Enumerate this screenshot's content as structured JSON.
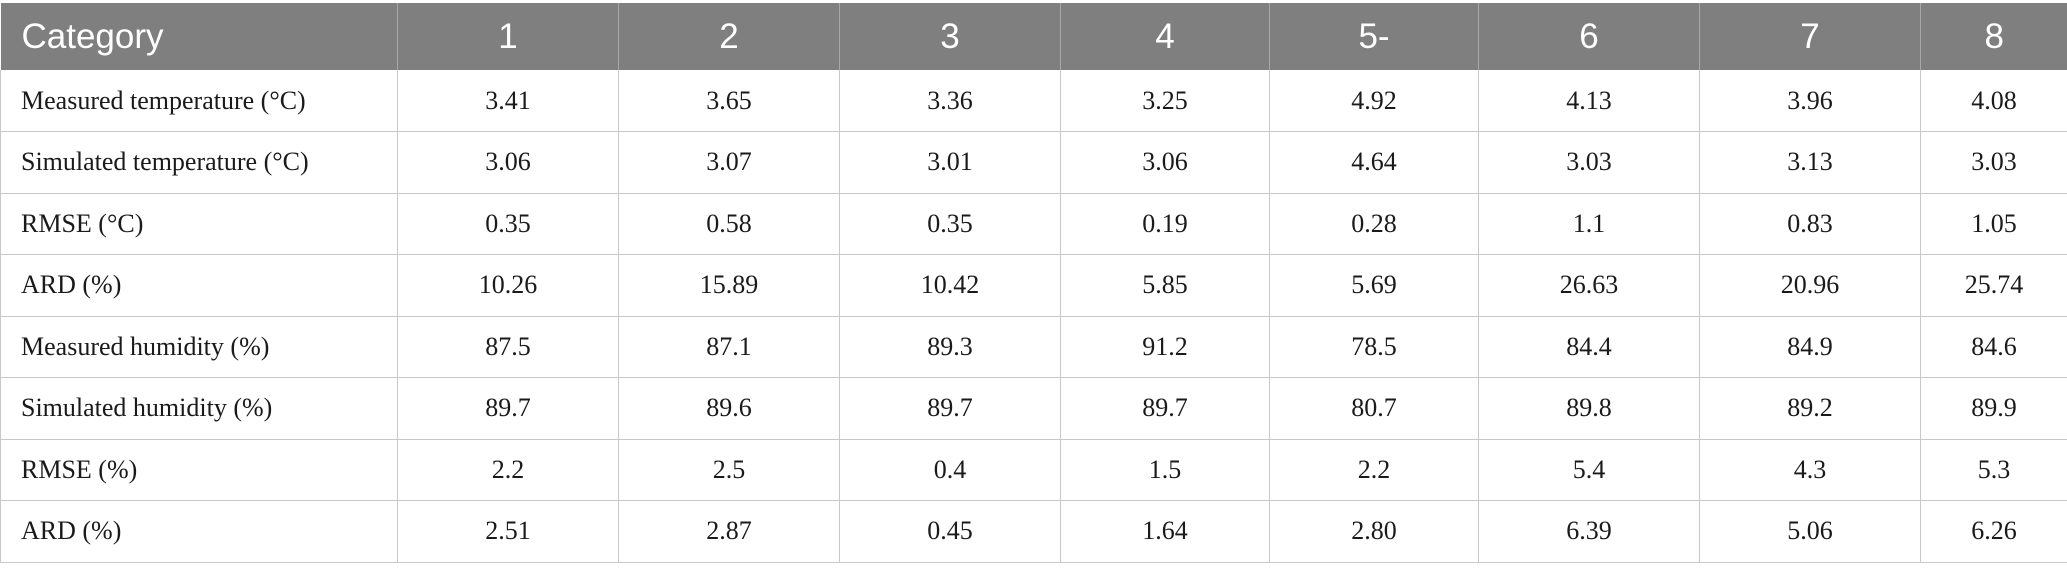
{
  "table": {
    "headers": [
      "Category",
      "1",
      "2",
      "3",
      "4",
      "5-",
      "6",
      "7",
      "8"
    ],
    "rows": [
      [
        "Measured temperature (°C)",
        "3.41",
        "3.65",
        "3.36",
        "3.25",
        "4.92",
        "4.13",
        "3.96",
        "4.08"
      ],
      [
        "Simulated temperature (°C)",
        "3.06",
        "3.07",
        "3.01",
        "3.06",
        "4.64",
        "3.03",
        "3.13",
        "3.03"
      ],
      [
        "RMSE (°C)",
        "0.35",
        "0.58",
        "0.35",
        "0.19",
        "0.28",
        "1.1",
        "0.83",
        "1.05"
      ],
      [
        "ARD (%)",
        "10.26",
        "15.89",
        "10.42",
        "5.85",
        "5.69",
        "26.63",
        "20.96",
        "25.74"
      ],
      [
        "Measured humidity (%)",
        "87.5",
        "87.1",
        "89.3",
        "91.2",
        "78.5",
        "84.4",
        "84.9",
        "84.6"
      ],
      [
        "Simulated humidity (%)",
        "89.7",
        "89.6",
        "89.7",
        "89.7",
        "80.7",
        "89.8",
        "89.2",
        "89.9"
      ],
      [
        "RMSE (%)",
        "2.2",
        "2.5",
        "0.4",
        "1.5",
        "2.2",
        "5.4",
        "4.3",
        "5.3"
      ],
      [
        "ARD (%)",
        "2.51",
        "2.87",
        "0.45",
        "1.64",
        "2.80",
        "6.39",
        "5.06",
        "6.26"
      ]
    ]
  },
  "colors": {
    "header_background": "#7f7f7f",
    "header_text": "#ffffff",
    "body_text": "#1a1a1a",
    "grid_lines": "#c8c8c8"
  }
}
